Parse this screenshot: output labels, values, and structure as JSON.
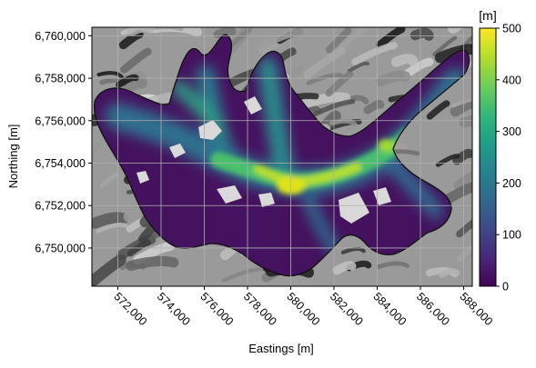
{
  "chart_data": {
    "type": "heatmap",
    "xlabel": "Eastings [m]",
    "ylabel": "Northing [m]",
    "xlim": [
      570800,
      588400
    ],
    "ylim": [
      6748200,
      6760400
    ],
    "x_ticks": [
      572000,
      574000,
      576000,
      578000,
      580000,
      582000,
      584000,
      586000,
      588000
    ],
    "x_tick_labels": [
      "572,000",
      "574,000",
      "576,000",
      "578,000",
      "580,000",
      "582,000",
      "584,000",
      "586,000",
      "588,000"
    ],
    "y_ticks": [
      6750000,
      6752000,
      6754000,
      6756000,
      6758000,
      6760000
    ],
    "y_tick_labels": [
      "6,750,000",
      "6,752,000",
      "6,754,000",
      "6,756,000",
      "6,758,000",
      "6,760,000"
    ],
    "grid": true,
    "background": "grayscale hillshade terrain",
    "colormap": "viridis",
    "colorbar": {
      "label": "[m]",
      "range": [
        0,
        500
      ],
      "ticks": [
        0,
        100,
        200,
        300,
        400,
        500
      ],
      "tick_labels": [
        "0",
        "100",
        "200",
        "300",
        "400",
        "500"
      ],
      "colors": [
        "#440154",
        "#482878",
        "#3e4989",
        "#31688e",
        "#26828e",
        "#1f9e89",
        "#35b779",
        "#6ece58",
        "#b5de2b",
        "#fde725"
      ]
    },
    "thickness_profile": [
      {
        "x": 572500,
        "y": 6754000,
        "value": 80
      },
      {
        "x": 574500,
        "y": 6755600,
        "value": 180
      },
      {
        "x": 576500,
        "y": 6757300,
        "value": 260
      },
      {
        "x": 578000,
        "y": 6753600,
        "value": 340
      },
      {
        "x": 580000,
        "y": 6752900,
        "value": 470
      },
      {
        "x": 582000,
        "y": 6753300,
        "value": 320
      },
      {
        "x": 584300,
        "y": 6754400,
        "value": 360
      },
      {
        "x": 585800,
        "y": 6756000,
        "value": 180
      },
      {
        "x": 587600,
        "y": 6758700,
        "value": 60
      }
    ]
  }
}
